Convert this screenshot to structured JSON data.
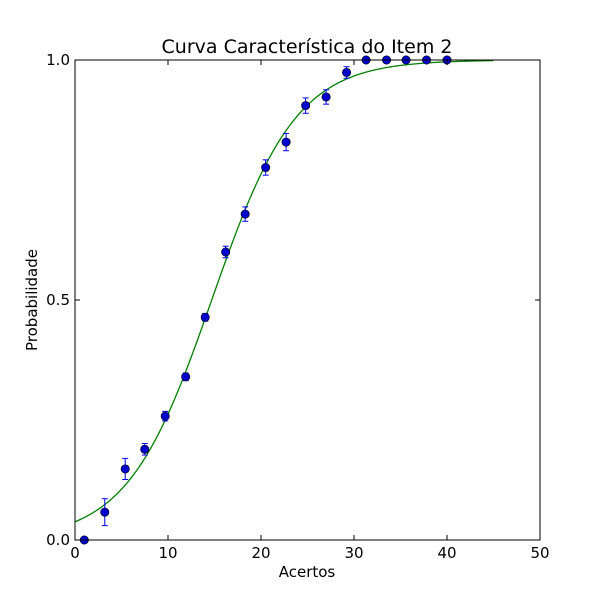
{
  "chart_data": {
    "type": "scatter",
    "title": "Curva Característica do Item 2",
    "xlabel": "Acertos",
    "ylabel": "Probabilidade",
    "xlim": [
      0,
      50
    ],
    "ylim": [
      0,
      1
    ],
    "x_ticks": [
      0,
      10,
      20,
      30,
      40,
      50
    ],
    "y_ticks": [
      0,
      0.5,
      1
    ],
    "x_tick_labels": [
      "0",
      "10",
      "20",
      "30",
      "40",
      "50"
    ],
    "y_tick_labels": [
      "0.0",
      "0.5",
      "1.0"
    ],
    "grid": false,
    "colors": {
      "points": "#0000cc",
      "errorbars": "#0000ff",
      "curve": "#008000",
      "axes": "#000000"
    },
    "series": [
      {
        "type": "errorbar-scatter",
        "points": [
          {
            "x": 1.0,
            "y": 0.0,
            "err": 0.0
          },
          {
            "x": 3.2,
            "y": 0.058,
            "err": 0.028
          },
          {
            "x": 5.4,
            "y": 0.148,
            "err": 0.022
          },
          {
            "x": 7.5,
            "y": 0.189,
            "err": 0.012
          },
          {
            "x": 9.7,
            "y": 0.258,
            "err": 0.01
          },
          {
            "x": 11.9,
            "y": 0.34,
            "err": 0.008
          },
          {
            "x": 14.0,
            "y": 0.464,
            "err": 0.008
          },
          {
            "x": 16.2,
            "y": 0.6,
            "err": 0.012
          },
          {
            "x": 18.3,
            "y": 0.679,
            "err": 0.015
          },
          {
            "x": 20.5,
            "y": 0.776,
            "err": 0.016
          },
          {
            "x": 22.7,
            "y": 0.829,
            "err": 0.018
          },
          {
            "x": 24.8,
            "y": 0.905,
            "err": 0.016
          },
          {
            "x": 27.0,
            "y": 0.923,
            "err": 0.015
          },
          {
            "x": 29.2,
            "y": 0.974,
            "err": 0.012
          },
          {
            "x": 31.3,
            "y": 1.0,
            "err": 0.0
          },
          {
            "x": 33.5,
            "y": 1.0,
            "err": 0.0
          },
          {
            "x": 35.6,
            "y": 1.0,
            "err": 0.0
          },
          {
            "x": 37.8,
            "y": 1.0,
            "err": 0.0
          },
          {
            "x": 40.0,
            "y": 1.0,
            "err": 0.0
          }
        ]
      },
      {
        "type": "logistic-curve",
        "x_range": [
          0,
          45
        ],
        "midpoint": 14.7,
        "slope": 0.22
      }
    ]
  }
}
